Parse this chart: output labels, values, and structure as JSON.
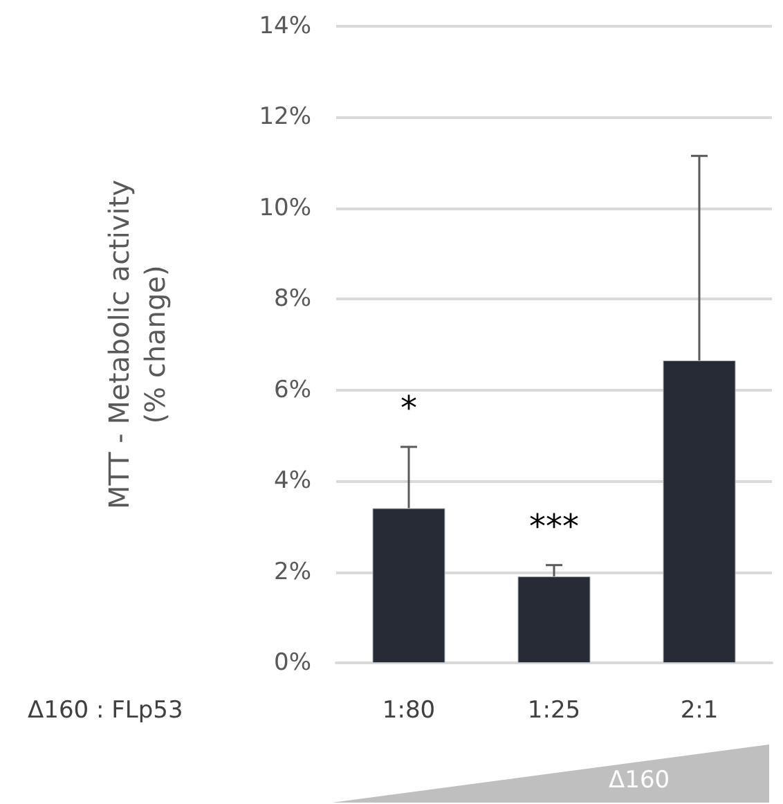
{
  "chart_data": {
    "type": "bar",
    "ylabel": "MTT - Metabolic activity\n(% change)",
    "xlabel": "Δ160 : FLp53",
    "categories": [
      "1:80",
      "1:25",
      "2:1"
    ],
    "values": [
      3.4,
      1.9,
      6.65
    ],
    "errors": [
      [
        3.4,
        4.75
      ],
      [
        1.9,
        2.15
      ],
      [
        6.65,
        11.15
      ]
    ],
    "color": "#262b36",
    "ylim": [
      0,
      14
    ],
    "yticks": [
      {
        "value": 0,
        "label": "0%"
      },
      {
        "value": 2,
        "label": "2%"
      },
      {
        "value": 4,
        "label": "4%"
      },
      {
        "value": 6,
        "label": "6%"
      },
      {
        "value": 8,
        "label": "8%"
      },
      {
        "value": 10,
        "label": "10%"
      },
      {
        "value": 12,
        "label": "12%"
      },
      {
        "value": 14,
        "label": "14%"
      }
    ],
    "grid": "y",
    "annotations": [
      "*",
      "***",
      "Δ160"
    ]
  }
}
